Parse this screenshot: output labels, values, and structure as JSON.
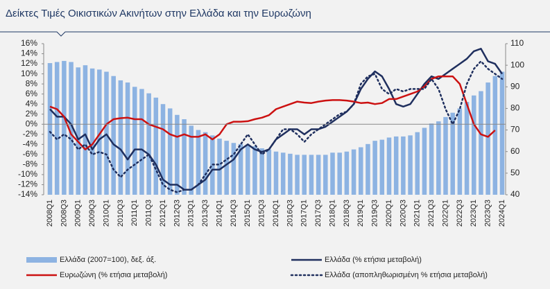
{
  "chart_data": {
    "type": "combo",
    "title": "Δείκτες Τιμές Οικιστικών Ακινήτων στην Ελλάδα και την Ευρωζώνη",
    "categories": [
      "2008Q1",
      null,
      "2008Q3",
      null,
      "2009Q1",
      null,
      "2009Q3",
      null,
      "2010Q1",
      null,
      "2010Q3",
      null,
      "2011Q1",
      null,
      "2011Q3",
      null,
      "2012Q1",
      null,
      "2012Q3",
      null,
      "2013Q1",
      null,
      "2013Q3",
      null,
      "2014Q1",
      null,
      "2014Q3",
      null,
      "2015Q1",
      null,
      "2015Q3",
      null,
      "2016Q1",
      null,
      "2016Q3",
      null,
      "2017Q1",
      null,
      "2017Q3",
      null,
      "2018Q1",
      null,
      "2018Q3",
      null,
      "2019Q1",
      null,
      "2019Q3",
      null,
      "2020Q1",
      null,
      "2020Q3",
      null,
      "2021Q1",
      null,
      "2021Q3",
      null,
      "2022Q1",
      null,
      "2022Q3",
      null,
      "2023Q1",
      null,
      "2023Q3",
      null,
      "2024Q1"
    ],
    "ylim": [
      -14,
      16
    ],
    "yticks": [
      {
        "value": -14,
        "label": "-14%"
      },
      {
        "value": -12,
        "label": "-12%"
      },
      {
        "value": -10,
        "label": "-10%"
      },
      {
        "value": -8,
        "label": "-8%"
      },
      {
        "value": -6,
        "label": "-6%"
      },
      {
        "value": -4,
        "label": "-4%"
      },
      {
        "value": -2,
        "label": "-2%"
      },
      {
        "value": 0,
        "label": "0%"
      },
      {
        "value": 2,
        "label": "2%"
      },
      {
        "value": 4,
        "label": "4%"
      },
      {
        "value": 6,
        "label": "6%"
      },
      {
        "value": 8,
        "label": "8%"
      },
      {
        "value": 10,
        "label": "10%"
      },
      {
        "value": 12,
        "label": "12%"
      },
      {
        "value": 14,
        "label": "14%"
      },
      {
        "value": 16,
        "label": "16%"
      }
    ],
    "y2lim": [
      40,
      110
    ],
    "y2ticks": [
      40,
      50,
      60,
      70,
      80,
      90,
      100,
      110
    ],
    "series": [
      {
        "name": "Ελλάδα (2007=100), δεξ. άξ.",
        "type": "bar",
        "axis": "y2",
        "color": "#8db3e2",
        "values": [
          101,
          101.5,
          102,
          101.5,
          99,
          100,
          98.5,
          98,
          97,
          95,
          93,
          92,
          90,
          89,
          87,
          85,
          82,
          80,
          77,
          75,
          72,
          70,
          69,
          67.5,
          66,
          65,
          64,
          63.5,
          63,
          62.5,
          61.5,
          61,
          60,
          59.5,
          59,
          58.5,
          58.5,
          58.5,
          58.5,
          58.5,
          59.5,
          59.5,
          60,
          61,
          62,
          63.5,
          65,
          65.5,
          66.5,
          67,
          67,
          67.5,
          69,
          71,
          73,
          74,
          76,
          78,
          80,
          83,
          86,
          88,
          92,
          95,
          97
        ]
      },
      {
        "name": "Ελλάδα (% ετήσια μεταβολή)",
        "type": "line",
        "color": "#1f2f5e",
        "values": [
          3,
          1.5,
          1.5,
          0,
          -3,
          -2,
          -5,
          -3,
          -2,
          -4,
          -5,
          -7,
          -5,
          -5,
          -6,
          -8,
          -11,
          -12,
          -12,
          -13,
          -13,
          -12,
          -11,
          -9,
          -9,
          -8,
          -7,
          -5,
          -4,
          -5,
          -5.5,
          -5,
          -3,
          -2,
          -1,
          -1,
          -2,
          -1,
          -1,
          -0.5,
          0.5,
          1.5,
          2.5,
          4,
          7,
          9,
          10.5,
          9.5,
          7,
          4,
          3.5,
          4,
          6,
          8,
          9.5,
          9,
          10,
          11,
          12,
          13,
          14.5,
          15,
          12.5,
          12,
          10
        ]
      },
      {
        "name": "Ευρωζώνη (% ετήσια μεταβολή)",
        "type": "line",
        "color": "#cc1111",
        "values": [
          3.5,
          3,
          1.5,
          -2,
          -3.5,
          -5,
          -4,
          -2,
          0,
          1,
          1.2,
          1.3,
          1,
          1,
          0,
          -0.5,
          -1,
          -2,
          -2.5,
          -2,
          -2.5,
          -2.5,
          -2,
          -3,
          -2,
          0,
          0.5,
          0.5,
          0.6,
          1,
          1.3,
          1.8,
          3,
          3.5,
          4,
          4.5,
          4.3,
          4.2,
          4.5,
          4.7,
          4.8,
          4.8,
          4.7,
          4.5,
          4.2,
          4.3,
          4,
          4.2,
          5,
          5,
          5.5,
          6,
          6.5,
          7.5,
          9,
          9.5,
          9.5,
          9.5,
          8,
          4,
          0,
          -2,
          -2.5,
          -1.2,
          null
        ]
      },
      {
        "name": "Ελλάδα (αποπληθωρισμένη % ετήσια μεταβολή)",
        "type": "line",
        "style": "dotted",
        "color": "#1f2f5e",
        "values": [
          -1.5,
          -3,
          -2,
          -3,
          -5,
          -4,
          -6,
          -5.5,
          -6,
          -9,
          -10.5,
          -9,
          -8,
          -7,
          -6,
          -9,
          -12,
          -13,
          -13.5,
          -13,
          -13,
          -12,
          -10,
          -8,
          -8,
          -7,
          -6,
          -4,
          -2,
          -4,
          -6,
          -5,
          -3,
          -1,
          -1,
          -2,
          -3.5,
          -2,
          -1,
          0,
          1,
          2,
          2.5,
          4,
          8,
          9.5,
          10,
          7,
          6,
          7,
          6.5,
          7,
          7,
          7,
          9,
          7,
          3,
          0,
          3,
          8,
          11,
          12.5,
          11,
          10,
          9
        ]
      }
    ]
  }
}
